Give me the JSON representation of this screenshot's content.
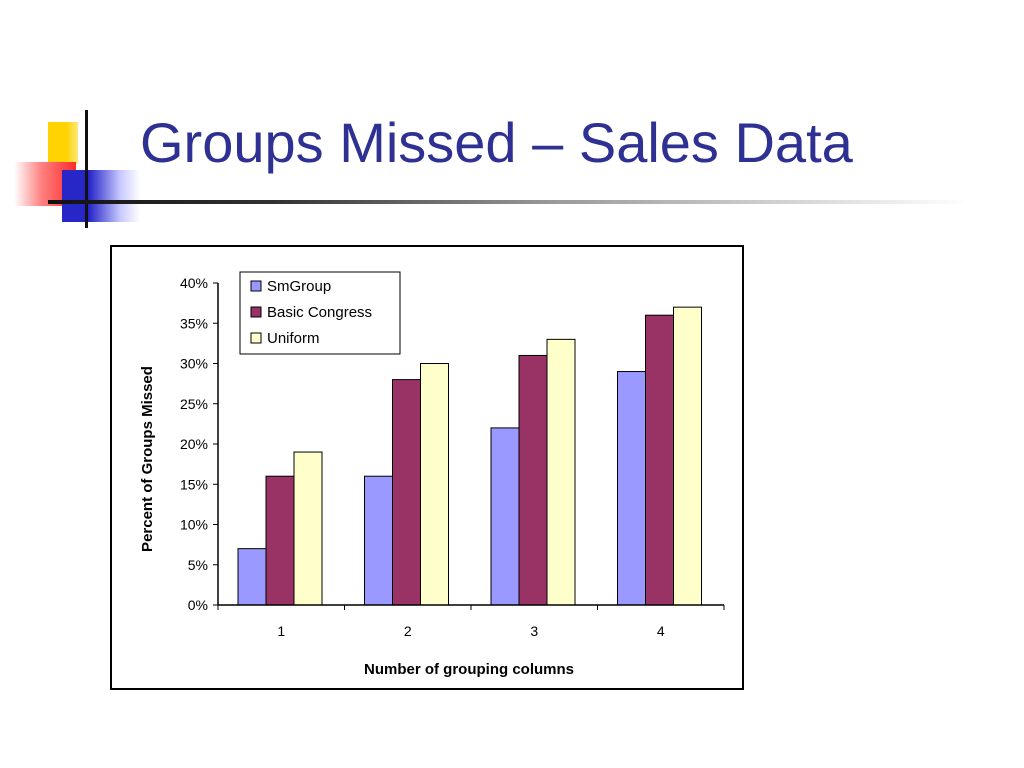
{
  "slide": {
    "title": "Groups Missed – Sales Data"
  },
  "colors": {
    "title": "#2e3192",
    "decor_yellow": "#ffd200",
    "decor_red": "#ff2a2a",
    "decor_blue": "#2727c8"
  },
  "chart_data": {
    "type": "bar",
    "categories": [
      "1",
      "2",
      "3",
      "4"
    ],
    "series": [
      {
        "name": "SmGroup",
        "values": [
          7,
          16,
          22,
          29
        ],
        "color": "#9999ff"
      },
      {
        "name": "Basic Congress",
        "values": [
          16,
          28,
          31,
          36
        ],
        "color": "#993366"
      },
      {
        "name": "Uniform",
        "values": [
          19,
          30,
          33,
          37
        ],
        "color": "#ffffcc"
      }
    ],
    "xlabel": "Number of grouping columns",
    "ylabel": "Percent of Groups Missed",
    "ylim": [
      0,
      40
    ],
    "yticks": [
      "0%",
      "5%",
      "10%",
      "15%",
      "20%",
      "25%",
      "30%",
      "35%",
      "40%"
    ],
    "grid": false,
    "legend_position": "top-left"
  }
}
